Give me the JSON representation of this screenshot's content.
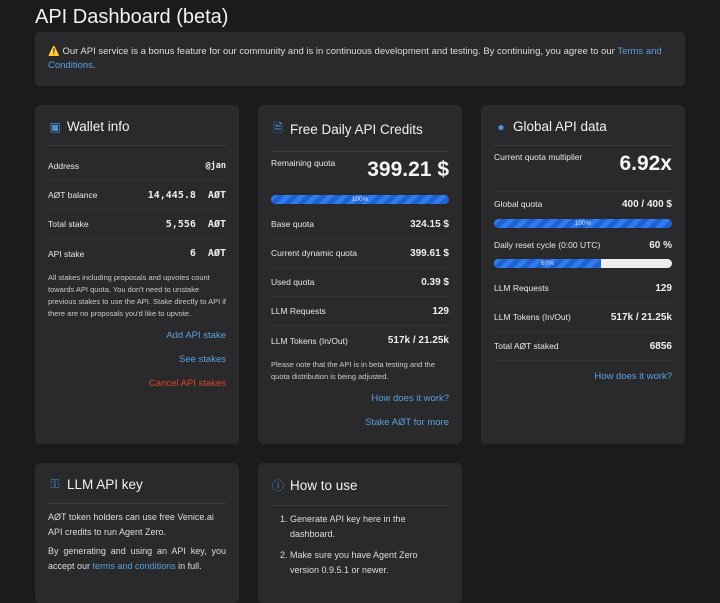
{
  "title": "API Dashboard (beta)",
  "banner": {
    "icon": "warning-icon",
    "text": "⚠️ Our API service is a bonus feature for our community and is in continuous development and testing. By continuing, you agree to our ",
    "link": "Terms and Conditions",
    "end": "."
  },
  "wallet": {
    "title": "Wallet info",
    "icon": "wallet-icon",
    "rows": [
      {
        "label": "Address",
        "value": "@jan"
      },
      {
        "label": "AØT balance",
        "value": "14,445.8  AØT"
      },
      {
        "label": "Total stake",
        "value": "5,556  AØT"
      },
      {
        "label": "API stake",
        "value": "6  AØT"
      }
    ],
    "note": "All stakes including proposals and upvotes count towards API quota. You don't need to unstake previous stakes to use the API. Stake directly to API if there are no proposals you'd like to upvote.",
    "add": "Add API stake",
    "see": "See stakes",
    "cancel": "Cancel API stakes"
  },
  "credits": {
    "title": "Free Daily API Credits",
    "icon": "document-dollar-icon",
    "remaining_label": "Remaining quota",
    "remaining": "399.21 $",
    "progress": 100,
    "progress_label": "100%",
    "rows": [
      {
        "label": "Base quota",
        "value": "324.15 $"
      },
      {
        "label": "Current dynamic quota",
        "value": "399.61 $"
      },
      {
        "label": "Used quota",
        "value": "0.39 $"
      },
      {
        "label": "LLM Requests",
        "value": "129"
      },
      {
        "label": "LLM Tokens (In/Out)",
        "value": "517k / 21.25k"
      }
    ],
    "note": "Please note that the API is in beta testing and the quota distribution is being adjusted.",
    "how": "How does it work?",
    "stake": "Stake AØT for more"
  },
  "global": {
    "title": "Global API data",
    "icon": "globe-icon",
    "mult_label": "Current quota multiplier",
    "mult": "6.92x",
    "quota_label": "Global quota",
    "quota": "400 / 400 $",
    "quota_progress": 100,
    "quota_progress_label": "100%",
    "reset_label": "Daily reset cycle (0:00 UTC)",
    "reset": "60 %",
    "reset_progress": 60,
    "reset_progress_label": "60%",
    "rows": [
      {
        "label": "LLM Requests",
        "value": "129"
      },
      {
        "label": "LLM Tokens (In/Out)",
        "value": "517k / 21.25k"
      },
      {
        "label": "Total AØT staked",
        "value": "6856"
      }
    ],
    "how": "How does it work?"
  },
  "apikey": {
    "title": "LLM API key",
    "icon": "key-icon",
    "p1": "AØT token holders can use free Venice.ai API credits to run Agent Zero.",
    "p2a": "By generating and using an API key, you accept our ",
    "p2link": "terms and conditions",
    "p2b": " in full."
  },
  "howto": {
    "title": "How to use",
    "icon": "question-circle-icon",
    "steps": [
      "Generate API key here in the dashboard.",
      "Make sure you have Agent Zero version 0.9.5.1 or newer."
    ]
  }
}
